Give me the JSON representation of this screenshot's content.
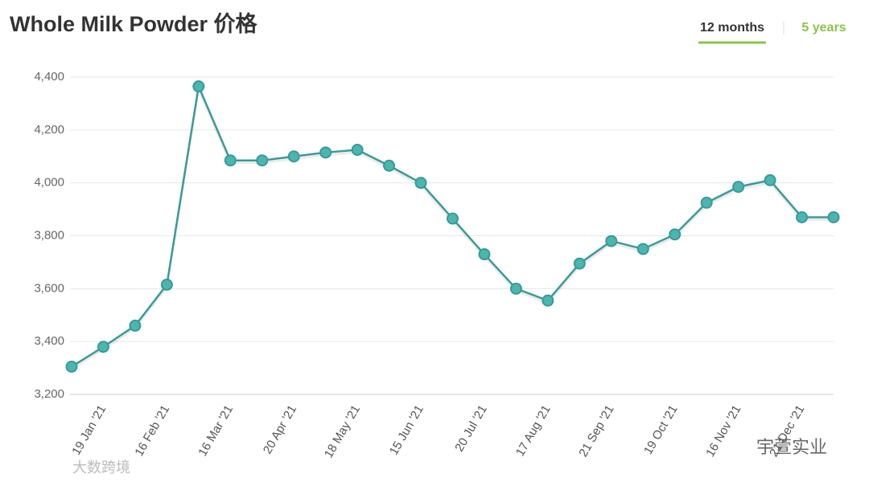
{
  "header": {
    "title": "Whole Milk Powder 价格",
    "tabs": [
      "12 months",
      "5 years"
    ]
  },
  "chart_data": {
    "type": "line",
    "categories": [
      null,
      "19 Jan '21",
      null,
      "16 Feb '21",
      null,
      "16 Mar '21",
      null,
      "20 Apr '21",
      null,
      "18 May '21",
      null,
      "15 Jun '21",
      null,
      "20 Jul '21",
      null,
      "17 Aug '21",
      null,
      "21 Sep '21",
      null,
      "19 Oct '21",
      null,
      "16 Nov '21",
      null,
      "21 Dec '21",
      null
    ],
    "values": [
      3305,
      3380,
      3460,
      3615,
      4365,
      4085,
      4085,
      4100,
      4115,
      4125,
      4065,
      4000,
      3865,
      3730,
      3600,
      3555,
      3695,
      3780,
      3750,
      3805,
      3925,
      3985,
      4010,
      3870,
      3870
    ],
    "color": "#3a9a96",
    "ylim": [
      3200,
      4400
    ],
    "yticks": [
      {
        "value": 3200,
        "label": "3,200"
      },
      {
        "value": 3400,
        "label": "3,400"
      },
      {
        "value": 3600,
        "label": "3,600"
      },
      {
        "value": 3800,
        "label": "3,800"
      },
      {
        "value": 4000,
        "label": "4,000"
      },
      {
        "value": 4200,
        "label": "4,200"
      },
      {
        "value": 4400,
        "label": "4,400"
      }
    ],
    "grid": true
  },
  "watermarks": [
    "大数跨境",
    "宇萱实业"
  ]
}
